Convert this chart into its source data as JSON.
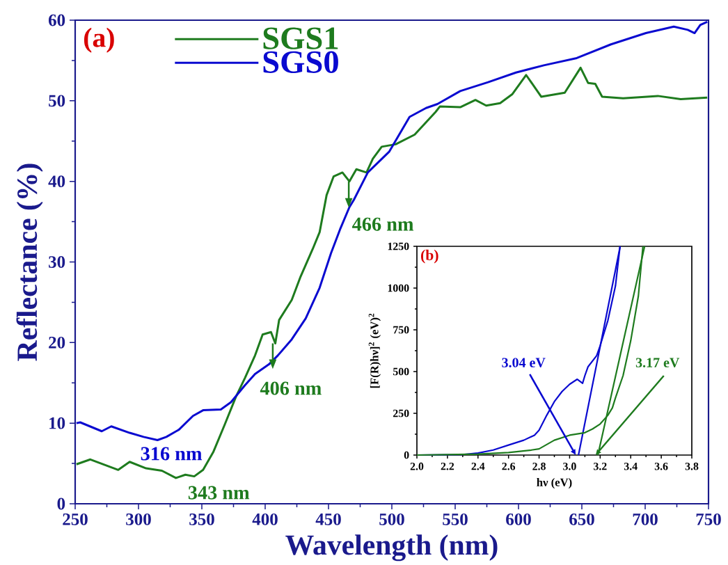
{
  "chart_data": [
    {
      "type": "line",
      "xlabel": "Wavelength (nm)",
      "ylabel": "Reflectance (%)",
      "xlim": [
        250,
        750
      ],
      "ylim": [
        0,
        60
      ],
      "xticks": [
        250,
        300,
        350,
        400,
        450,
        500,
        550,
        600,
        650,
        700,
        750
      ],
      "yticks": [
        0,
        10,
        20,
        30,
        40,
        50,
        60
      ],
      "legend": "top left",
      "grid": false,
      "series": [
        {
          "name": "SGS1",
          "color": "#1e7b1e",
          "x": [
            251,
            262,
            284,
            293,
            306,
            318.5,
            329.5,
            337,
            344,
            351,
            359,
            368,
            377,
            384,
            392,
            398,
            404.6,
            408,
            411,
            421,
            428,
            437.5,
            443,
            448.5,
            454,
            461,
            466.5,
            472,
            480,
            485,
            492,
            503,
            518,
            534.5,
            538,
            554,
            566,
            574.5,
            585.5,
            595,
            606,
            618,
            636.5,
            649,
            655,
            660.6,
            666,
            682.6,
            710,
            728,
            749
          ],
          "values": [
            4.9,
            5.5,
            4.2,
            5.2,
            4.4,
            4.1,
            3.2,
            3.6,
            3.4,
            4.2,
            6.4,
            9.8,
            13.3,
            15.6,
            18.4,
            21.0,
            21.3,
            19.9,
            22.8,
            25.3,
            28.2,
            31.6,
            33.7,
            38.3,
            40.6,
            41.1,
            40.0,
            41.5,
            41.1,
            42.8,
            44.3,
            44.6,
            45.8,
            48.6,
            49.3,
            49.2,
            50.1,
            49.4,
            49.7,
            50.8,
            53.2,
            50.5,
            51.0,
            54.1,
            52.2,
            52.1,
            50.5,
            50.3,
            50.6,
            50.2,
            50.4
          ]
        },
        {
          "name": "SGS0",
          "color": "#0a0ad0",
          "x": [
            251,
            254,
            271,
            278.5,
            293,
            304,
            315,
            322,
            332,
            343,
            351,
            365,
            373,
            384,
            392,
            403,
            410,
            421,
            432,
            443,
            452,
            459,
            466.5,
            470,
            481,
            498,
            514,
            527,
            536,
            554,
            576,
            598,
            620,
            646,
            673,
            700.6,
            722.6,
            733.6,
            739,
            743.5,
            749
          ],
          "values": [
            10.0,
            10.1,
            9.0,
            9.6,
            8.8,
            8.3,
            7.9,
            8.3,
            9.2,
            10.9,
            11.6,
            11.7,
            12.6,
            14.7,
            16.1,
            17.3,
            18.4,
            20.4,
            23.0,
            26.8,
            31.1,
            34.0,
            36.8,
            37.7,
            41.1,
            43.7,
            48.0,
            49.1,
            49.6,
            51.2,
            52.3,
            53.5,
            54.4,
            55.3,
            57.0,
            58.4,
            59.2,
            58.8,
            58.4,
            59.4,
            59.8
          ]
        }
      ],
      "annotations": [
        "(a)",
        {
          "text": "316 nm",
          "x": 316,
          "y": 7.9
        },
        {
          "text": "343 nm",
          "x": 343,
          "y": 3.4
        },
        {
          "text": "406 nm",
          "x": 406,
          "y": 19.9
        },
        {
          "text": "466 nm",
          "x": 466,
          "y": 40.0
        }
      ]
    },
    {
      "type": "line",
      "xlabel": "hν (eV)",
      "ylabel": "[F(R)hν]$^{2}$ (eV)$^{2}$",
      "xlim": [
        2.0,
        3.8
      ],
      "ylim": [
        0,
        1250
      ],
      "xticks": [
        {
          "value": 2.0,
          "label": "2.0"
        },
        {
          "value": 2.2,
          "label": "2.2"
        },
        {
          "value": 2.4,
          "label": "2.4"
        },
        {
          "value": 2.6,
          "label": "2.6"
        },
        {
          "value": 2.8,
          "label": "2.8"
        },
        {
          "value": 3.0,
          "label": "3.0"
        },
        {
          "value": 3.2,
          "label": "3.2"
        },
        {
          "value": 3.4,
          "label": "3.4"
        },
        {
          "value": 3.6,
          "label": "3.6"
        },
        {
          "value": 3.8,
          "label": "3.8"
        }
      ],
      "yticks": [
        0,
        250,
        500,
        750,
        1000,
        1250
      ],
      "grid": false,
      "series": [
        {
          "color": "#0a0ad0",
          "x": [
            2.0,
            2.3,
            2.4,
            2.5,
            2.6,
            2.7,
            2.77,
            2.8,
            2.85,
            2.9,
            2.95,
            3.0,
            3.05,
            3.085,
            3.1,
            3.12,
            3.177,
            3.2,
            3.25,
            3.3,
            3.33
          ],
          "values": [
            0,
            3,
            12,
            30,
            60,
            89,
            119,
            149,
            238,
            320,
            380,
            424,
            454,
            430,
            476,
            528,
            595,
            655,
            804,
            1012,
            1250
          ]
        },
        {
          "color": "#0a0ad0",
          "x": [
            3.058,
            3.331
          ],
          "values": [
            0,
            1250
          ]
        },
        {
          "color": "#1e7b1e",
          "x": [
            2.0,
            2.4,
            2.6,
            2.75,
            2.8,
            2.9,
            3.0,
            3.1,
            3.15,
            3.2,
            3.25,
            3.28,
            3.3,
            3.35,
            3.4,
            3.45,
            3.48
          ],
          "values": [
            0,
            6,
            15,
            30,
            37,
            89,
            119,
            134,
            156,
            186,
            238,
            283,
            342,
            476,
            684,
            952,
            1250
          ]
        },
        {
          "color": "#1e7b1e",
          "x": [
            3.185,
            3.491
          ],
          "values": [
            0,
            1250
          ]
        }
      ],
      "annotations": [
        "(b)",
        {
          "text": "3.04 eV",
          "x": 3.04,
          "y": 0
        },
        {
          "text": "3.17 eV",
          "x": 3.17,
          "y": 0
        }
      ]
    }
  ]
}
